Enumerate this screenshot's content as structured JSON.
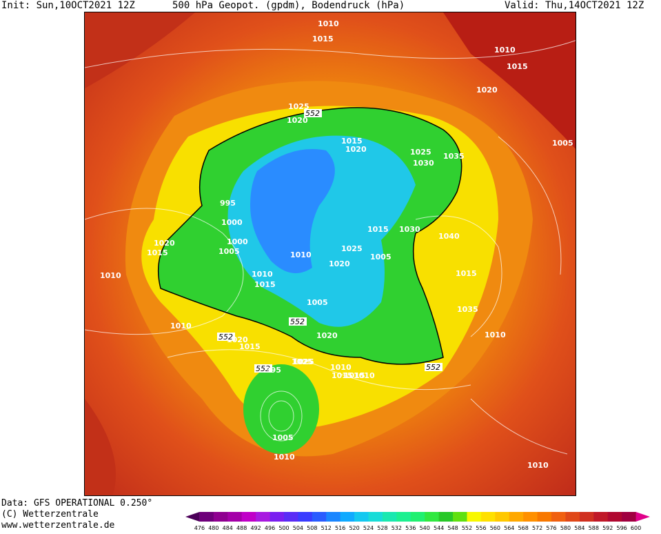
{
  "header": {
    "init": "Init: Sun,10OCT2021 12Z",
    "title": "500 hPa Geopot. (gpdm), Bodendruck (hPa)",
    "valid": "Valid: Thu,14OCT2021 12Z"
  },
  "footer": {
    "data_source": "Data: GFS OPERATIONAL 0.250°",
    "copyright": "(C) Wetterzentrale",
    "url": "www.wetterzentrale.de"
  },
  "pressure_labels": [
    "1010",
    "1015",
    "1010",
    "1015",
    "1020",
    "1025",
    "552",
    "1020",
    "1005",
    "1025",
    "1030",
    "1035",
    "1015",
    "1020",
    "995",
    "1000",
    "1020",
    "1015",
    "1010",
    "1000",
    "1005",
    "1025",
    "1010",
    "1015",
    "1020",
    "1030",
    "1040",
    "1005",
    "1015",
    "1035",
    "1010",
    "1015",
    "1005",
    "1010",
    "1025",
    "552",
    "1020",
    "1010",
    "1015",
    "552",
    "1020",
    "1015",
    "1025",
    "1010",
    "1015",
    "1010",
    "552",
    "552",
    "995",
    "1005",
    "1010",
    "1010"
  ],
  "legend": {
    "ticks": [
      "476",
      "480",
      "484",
      "488",
      "492",
      "496",
      "500",
      "504",
      "508",
      "512",
      "516",
      "520",
      "524",
      "528",
      "532",
      "536",
      "540",
      "544",
      "548",
      "552",
      "556",
      "560",
      "564",
      "568",
      "572",
      "576",
      "580",
      "584",
      "588",
      "592",
      "596",
      "600"
    ],
    "colors": [
      "#4b0058",
      "#6e007a",
      "#8f0090",
      "#a400a8",
      "#c000c8",
      "#a81ae0",
      "#7a1ff0",
      "#5a2cf6",
      "#3a3cff",
      "#2a5cff",
      "#1a86ff",
      "#10aaff",
      "#14c8f0",
      "#18dcd8",
      "#1ae8b0",
      "#1cf090",
      "#20f070",
      "#30e840",
      "#28c828",
      "#60e010",
      "#f8f800",
      "#ffe000",
      "#ffc800",
      "#ffa800",
      "#ff9000",
      "#f87800",
      "#f06010",
      "#e04818",
      "#d03020",
      "#c01828",
      "#b00830",
      "#a00040",
      "#e0008a"
    ]
  },
  "colors": {
    "warm_dark": "#c02c1a",
    "warm": "#e04e14",
    "orange": "#f07c0c",
    "yellow": "#f8e800",
    "green": "#30d030",
    "cyan": "#20c8e8",
    "blue": "#2a8cff"
  }
}
